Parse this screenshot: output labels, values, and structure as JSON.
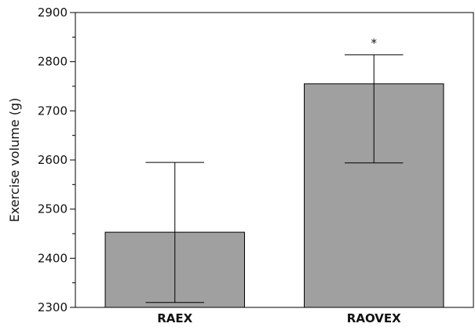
{
  "chart_data": {
    "type": "bar",
    "categories": [
      "RAEX",
      "RAOVEX"
    ],
    "values": [
      2453,
      2755
    ],
    "error_lower": [
      2310,
      2594
    ],
    "error_upper": [
      2595,
      2814
    ],
    "annotations": [
      "",
      "*"
    ],
    "xlabel": "",
    "ylabel": "Exercise volume (g)",
    "ylim": [
      2300,
      2900
    ],
    "yticks": [
      2300,
      2400,
      2500,
      2600,
      2700,
      2800,
      2900
    ],
    "ytick_labels": [
      "2300",
      "2400",
      "2500",
      "2600",
      "2700",
      "2800",
      "2900"
    ],
    "grid": false,
    "legend": "none",
    "colors": {
      "bar": "#a0a0a0",
      "bar_edge": "#000000",
      "axis": "#000000"
    }
  }
}
